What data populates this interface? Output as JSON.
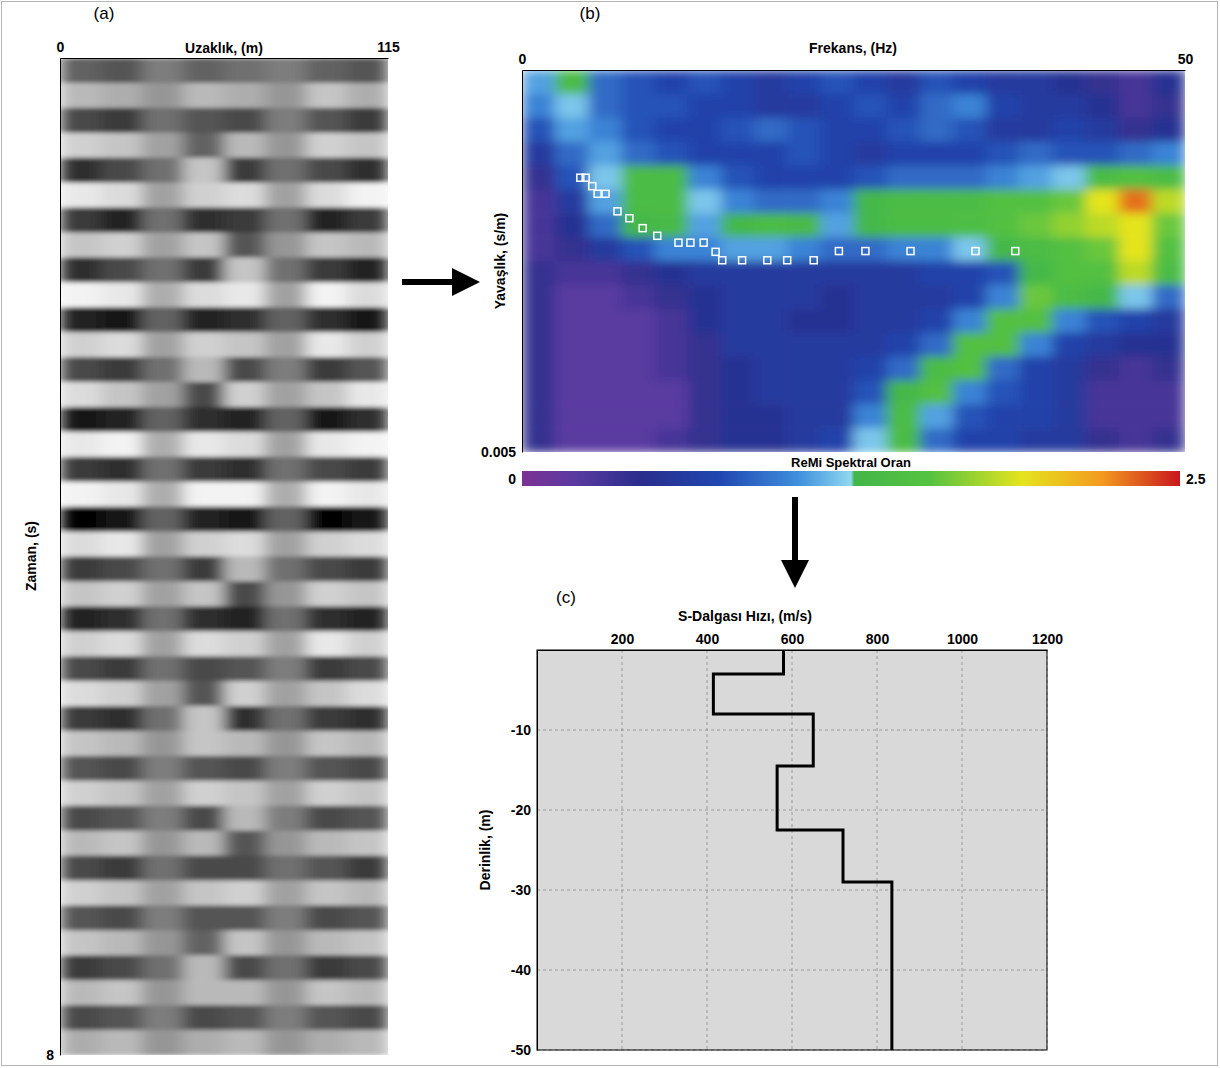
{
  "chart_data": [
    {
      "type": "heatmap",
      "title": "(a)",
      "xlabel": "Uzaklık, (m)",
      "ylabel": "Zaman, (s)",
      "xlim": [
        0,
        115
      ],
      "xticks": [
        0,
        115
      ],
      "ylim": [
        0,
        8
      ],
      "yticks": [
        8
      ],
      "cells": [
        [
          0.3,
          0.4,
          0.1,
          0.3,
          0.2,
          0.1,
          0.3,
          0.4
        ],
        [
          -0.4,
          -0.3,
          -0.1,
          -0.4,
          -0.3,
          -0.1,
          -0.5,
          -0.3
        ],
        [
          0.5,
          0.6,
          0.2,
          0.4,
          0.5,
          0.1,
          0.4,
          0.6
        ],
        [
          -0.6,
          -0.5,
          -0.2,
          0.3,
          -0.4,
          -0.1,
          -0.6,
          -0.5
        ],
        [
          0.7,
          0.5,
          0.2,
          -0.5,
          0.6,
          0.2,
          0.5,
          0.7
        ],
        [
          -0.8,
          -0.7,
          -0.2,
          -0.6,
          -0.7,
          -0.2,
          -0.7,
          -0.9
        ],
        [
          0.6,
          0.8,
          0.2,
          0.7,
          0.6,
          0.2,
          0.8,
          0.6
        ],
        [
          -0.5,
          -0.6,
          -0.2,
          -0.5,
          0.4,
          -0.1,
          -0.5,
          -0.4
        ],
        [
          0.7,
          0.5,
          0.2,
          0.6,
          -0.5,
          0.2,
          0.6,
          0.8
        ],
        [
          -0.9,
          -0.8,
          -0.3,
          -0.7,
          -0.8,
          -0.2,
          -0.9,
          -0.7
        ],
        [
          0.8,
          0.9,
          0.3,
          0.8,
          0.7,
          0.3,
          0.7,
          0.9
        ],
        [
          -0.6,
          -0.7,
          -0.2,
          -0.6,
          -0.5,
          -0.2,
          -0.8,
          -0.6
        ],
        [
          0.5,
          0.6,
          0.2,
          -0.4,
          0.5,
          0.1,
          0.6,
          0.4
        ],
        [
          -0.7,
          -0.5,
          -0.2,
          0.5,
          -0.6,
          -0.2,
          -0.5,
          -0.8
        ],
        [
          0.9,
          0.8,
          0.3,
          0.7,
          0.8,
          0.3,
          0.9,
          0.7
        ],
        [
          -0.8,
          -0.9,
          -0.3,
          -0.8,
          -0.7,
          -0.2,
          -0.8,
          -0.9
        ],
        [
          0.6,
          0.7,
          0.2,
          0.6,
          0.7,
          0.2,
          0.5,
          0.6
        ],
        [
          -0.9,
          -0.8,
          -0.3,
          -0.9,
          -0.9,
          -0.3,
          -0.9,
          -0.8
        ],
        [
          1.0,
          0.9,
          0.3,
          0.8,
          0.9,
          0.3,
          1.0,
          0.9
        ],
        [
          -0.7,
          -0.8,
          -0.2,
          -0.6,
          -0.7,
          -0.2,
          -0.6,
          -0.7
        ],
        [
          0.6,
          0.5,
          0.2,
          0.6,
          -0.4,
          0.2,
          0.5,
          0.6
        ],
        [
          -0.5,
          -0.6,
          -0.2,
          -0.5,
          0.5,
          -0.1,
          -0.6,
          -0.5
        ],
        [
          0.8,
          0.7,
          0.2,
          0.7,
          0.8,
          0.2,
          0.7,
          0.8
        ],
        [
          -0.6,
          -0.7,
          -0.2,
          -0.7,
          -0.6,
          -0.2,
          -0.8,
          -0.6
        ],
        [
          0.5,
          0.6,
          0.2,
          0.5,
          0.4,
          0.1,
          0.6,
          0.5
        ],
        [
          -0.7,
          -0.6,
          -0.2,
          0.4,
          -0.6,
          -0.2,
          -0.5,
          -0.7
        ],
        [
          0.6,
          0.7,
          0.2,
          -0.5,
          0.7,
          0.2,
          0.6,
          0.7
        ],
        [
          -0.5,
          -0.4,
          -0.1,
          -0.5,
          -0.4,
          -0.1,
          -0.5,
          -0.4
        ],
        [
          0.4,
          0.5,
          0.1,
          0.4,
          0.5,
          0.1,
          0.4,
          0.5
        ],
        [
          -0.6,
          -0.5,
          -0.2,
          -0.6,
          -0.5,
          -0.2,
          -0.6,
          -0.5
        ],
        [
          0.5,
          0.4,
          0.1,
          0.5,
          -0.4,
          0.1,
          0.5,
          0.4
        ],
        [
          -0.4,
          -0.5,
          -0.1,
          -0.4,
          0.4,
          -0.1,
          -0.4,
          -0.5
        ],
        [
          0.5,
          0.6,
          0.2,
          0.5,
          0.5,
          0.2,
          0.4,
          0.6
        ],
        [
          -0.6,
          -0.5,
          -0.2,
          -0.5,
          -0.6,
          -0.2,
          -0.5,
          -0.4
        ],
        [
          0.4,
          0.5,
          0.1,
          0.4,
          0.4,
          0.1,
          0.5,
          0.4
        ],
        [
          -0.5,
          -0.4,
          -0.1,
          0.3,
          -0.5,
          -0.1,
          -0.4,
          -0.5
        ],
        [
          0.6,
          0.5,
          0.2,
          -0.4,
          0.5,
          0.2,
          0.6,
          0.5
        ],
        [
          -0.4,
          -0.5,
          -0.1,
          -0.4,
          -0.4,
          -0.1,
          -0.5,
          -0.4
        ],
        [
          0.5,
          0.4,
          0.1,
          0.5,
          0.4,
          0.1,
          0.4,
          0.5
        ],
        [
          -0.3,
          -0.4,
          -0.1,
          -0.3,
          -0.4,
          -0.1,
          -0.3,
          -0.4
        ]
      ]
    },
    {
      "type": "heatmap",
      "title": "(b)",
      "xlabel": "Frekans, (Hz)",
      "ylabel": "Yavaşlık, (s/m)",
      "xlim": [
        0,
        50
      ],
      "xticks": [
        0,
        50
      ],
      "ylim": [
        0,
        0.005
      ],
      "yticks": [
        0.005
      ],
      "cells": [
        [
          1.1,
          1.4,
          0.9,
          0.8,
          0.7,
          0.8,
          0.7,
          0.6,
          0.7,
          0.8,
          0.7,
          0.6,
          0.8,
          0.7,
          0.6,
          0.6,
          0.5,
          0.4,
          0.3,
          0.5
        ],
        [
          1.0,
          1.2,
          0.9,
          0.8,
          0.8,
          0.7,
          0.7,
          0.6,
          0.6,
          0.7,
          0.8,
          0.7,
          0.9,
          1.0,
          0.7,
          0.6,
          0.6,
          0.5,
          0.3,
          0.4
        ],
        [
          0.8,
          1.1,
          1.0,
          0.8,
          0.7,
          0.7,
          0.8,
          0.9,
          0.8,
          0.7,
          0.7,
          0.8,
          0.9,
          0.8,
          0.6,
          0.6,
          0.7,
          0.6,
          0.4,
          0.5
        ],
        [
          0.6,
          0.9,
          1.1,
          0.9,
          0.8,
          0.7,
          0.7,
          0.7,
          0.8,
          0.7,
          0.6,
          0.7,
          0.7,
          0.7,
          0.8,
          0.9,
          0.8,
          0.8,
          0.9,
          1.0
        ],
        [
          0.4,
          0.8,
          1.2,
          1.4,
          1.4,
          1.0,
          0.8,
          0.7,
          0.7,
          0.7,
          0.8,
          0.9,
          0.9,
          0.9,
          1.0,
          1.1,
          1.2,
          1.4,
          1.5,
          1.4
        ],
        [
          0.3,
          0.6,
          1.1,
          1.4,
          1.4,
          1.2,
          1.0,
          0.9,
          0.9,
          1.0,
          1.3,
          1.4,
          1.4,
          1.4,
          1.5,
          1.5,
          1.6,
          1.9,
          2.3,
          1.8
        ],
        [
          0.3,
          0.5,
          0.9,
          1.3,
          1.35,
          1.1,
          1.3,
          1.4,
          1.35,
          1.1,
          1.3,
          1.4,
          1.4,
          1.45,
          1.5,
          1.6,
          1.7,
          1.8,
          1.9,
          1.6
        ],
        [
          0.3,
          0.4,
          0.6,
          0.8,
          1.0,
          1.0,
          1.1,
          1.1,
          1.0,
          0.9,
          0.9,
          1.0,
          1.0,
          1.2,
          1.3,
          1.4,
          1.5,
          1.6,
          1.9,
          1.5
        ],
        [
          0.4,
          0.3,
          0.3,
          0.4,
          0.5,
          0.6,
          0.6,
          0.6,
          0.6,
          0.6,
          0.6,
          0.6,
          0.7,
          0.7,
          0.8,
          1.3,
          1.5,
          1.5,
          1.8,
          1.4
        ],
        [
          0.4,
          0.2,
          0.2,
          0.3,
          0.4,
          0.5,
          0.6,
          0.6,
          0.6,
          0.5,
          0.6,
          0.6,
          0.6,
          0.7,
          1.0,
          1.6,
          1.4,
          1.3,
          1.2,
          0.9
        ],
        [
          0.4,
          0.2,
          0.2,
          0.2,
          0.3,
          0.5,
          0.6,
          0.6,
          0.5,
          0.5,
          0.6,
          0.6,
          0.7,
          1.0,
          1.5,
          1.5,
          1.0,
          0.8,
          0.7,
          0.6
        ],
        [
          0.4,
          0.2,
          0.2,
          0.2,
          0.3,
          0.4,
          0.6,
          0.6,
          0.6,
          0.6,
          0.6,
          0.7,
          0.9,
          1.5,
          1.5,
          1.0,
          0.7,
          0.6,
          0.5,
          0.5
        ],
        [
          0.4,
          0.2,
          0.2,
          0.2,
          0.3,
          0.4,
          0.5,
          0.6,
          0.6,
          0.6,
          0.7,
          0.9,
          1.4,
          1.5,
          0.9,
          0.7,
          0.6,
          0.4,
          0.3,
          0.4
        ],
        [
          0.4,
          0.2,
          0.2,
          0.2,
          0.2,
          0.4,
          0.5,
          0.6,
          0.6,
          0.6,
          0.8,
          1.3,
          1.5,
          1.0,
          0.8,
          0.7,
          0.6,
          0.3,
          0.3,
          0.3
        ],
        [
          0.4,
          0.2,
          0.2,
          0.2,
          0.2,
          0.4,
          0.5,
          0.5,
          0.6,
          0.6,
          1.0,
          1.4,
          1.1,
          0.8,
          0.7,
          0.7,
          0.6,
          0.3,
          0.3,
          0.3
        ],
        [
          0.4,
          0.2,
          0.2,
          0.2,
          0.3,
          0.4,
          0.5,
          0.5,
          0.6,
          0.7,
          1.2,
          1.4,
          0.9,
          0.7,
          0.7,
          0.6,
          0.6,
          0.4,
          0.3,
          0.4
        ]
      ],
      "colorbar": {
        "label": "ReMi Spektral Oran",
        "range": [
          0,
          2.5
        ],
        "ticks": [
          0,
          2.5
        ]
      },
      "series": [
        {
          "type": "scatter",
          "marker": "square",
          "color": "#ffffff",
          "x": [
            4.4,
            4.8,
            5.3,
            5.7,
            6.3,
            7.2,
            8.1,
            9.1,
            10.2,
            11.8,
            12.7,
            13.7,
            14.6,
            15.1,
            16.6,
            18.5,
            20.0,
            22.0,
            23.9,
            25.9,
            29.3,
            34.2,
            37.2
          ],
          "values": [
            0.00141,
            0.00141,
            0.00152,
            0.00162,
            0.00162,
            0.00185,
            0.00194,
            0.00207,
            0.00217,
            0.00226,
            0.00226,
            0.00226,
            0.00238,
            0.00249,
            0.00249,
            0.00249,
            0.00249,
            0.00249,
            0.00237,
            0.00237,
            0.00237,
            0.00237,
            0.00237
          ]
        }
      ]
    },
    {
      "type": "line",
      "title": "(c)",
      "xlabel": "S-Dalgası Hızı, (m/s)",
      "ylabel": "Derinlik, (m)",
      "xlim": [
        0,
        1200
      ],
      "xticks": [
        200,
        400,
        600,
        800,
        1000,
        1200
      ],
      "ylim": [
        -50,
        0
      ],
      "yticks": [
        -10,
        -20,
        -30,
        -40,
        -50
      ],
      "grid": true,
      "series": [
        {
          "color": "#000000",
          "line_style": "solid",
          "x": [
            580,
            580,
            415,
            415,
            650,
            650,
            565,
            565,
            720,
            720,
            835,
            835
          ],
          "values": [
            0,
            -3,
            -3,
            -8,
            -8,
            -14.5,
            -14.5,
            -22.5,
            -22.5,
            -29,
            -29,
            -50
          ]
        }
      ]
    }
  ]
}
